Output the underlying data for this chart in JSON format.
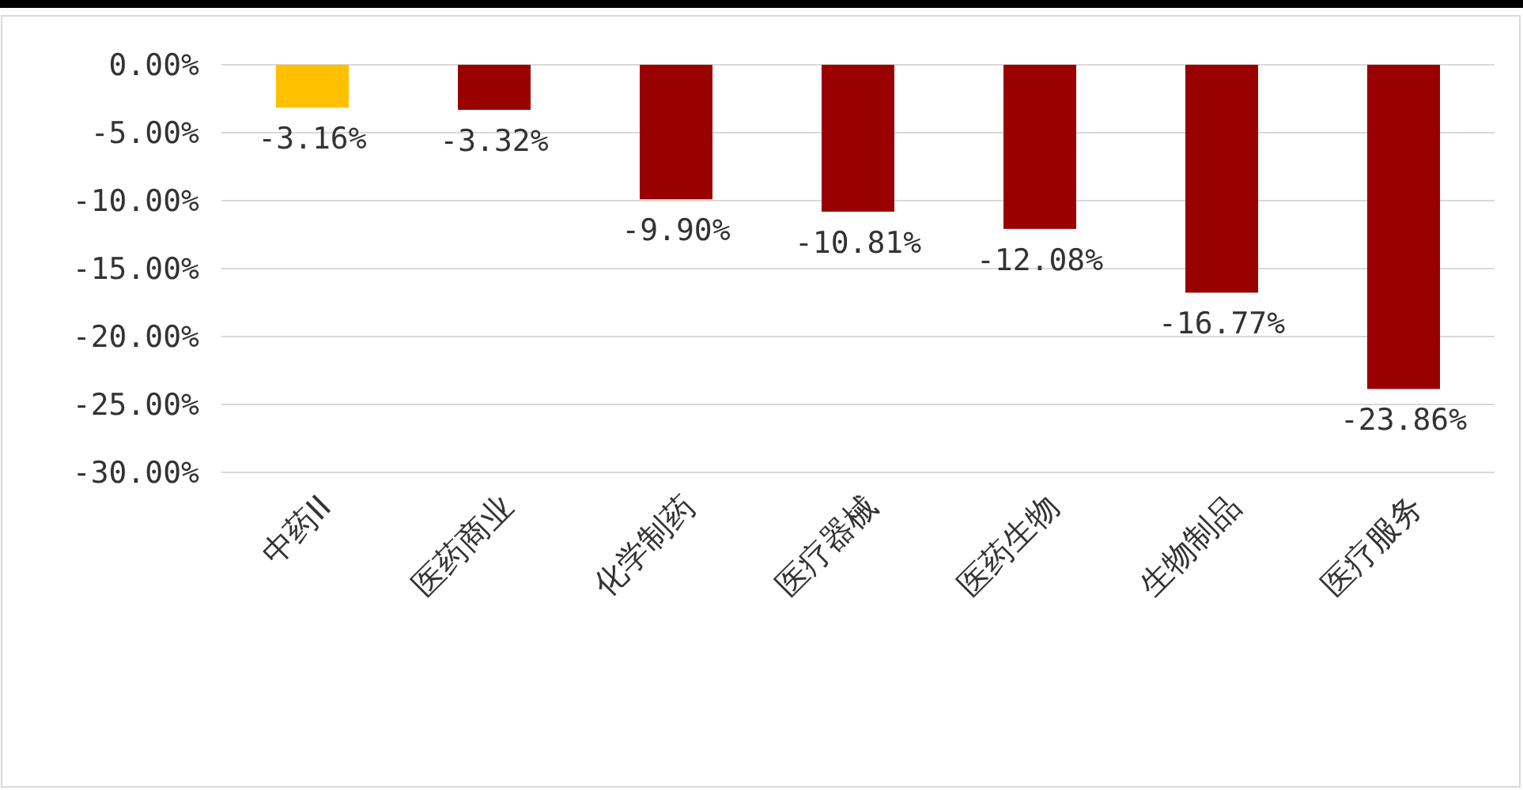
{
  "chart_data": {
    "type": "bar",
    "categories": [
      "中药II",
      "医药商业",
      "化学制药",
      "医疗器械",
      "医药生物",
      "生物制品",
      "医疗服务"
    ],
    "values": [
      -3.16,
      -3.32,
      -9.9,
      -10.81,
      -12.08,
      -16.77,
      -23.86
    ],
    "colors": [
      "#ffc000",
      "#990000",
      "#990000",
      "#990000",
      "#990000",
      "#990000",
      "#990000"
    ],
    "value_labels": [
      "-3.16%",
      "-3.32%",
      "-9.90%",
      "-10.81%",
      "-12.08%",
      "-16.77%",
      "-23.86%"
    ],
    "ylim": [
      -30,
      0
    ],
    "yticks": [
      {
        "value": 0,
        "label": "0.00%"
      },
      {
        "value": -5,
        "label": "-5.00%"
      },
      {
        "value": -10,
        "label": "-10.00%"
      },
      {
        "value": -15,
        "label": "-15.00%"
      },
      {
        "value": -20,
        "label": "-20.00%"
      },
      {
        "value": -25,
        "label": "-25.00%"
      },
      {
        "value": -30,
        "label": "-30.00%"
      }
    ],
    "grid": "y"
  }
}
